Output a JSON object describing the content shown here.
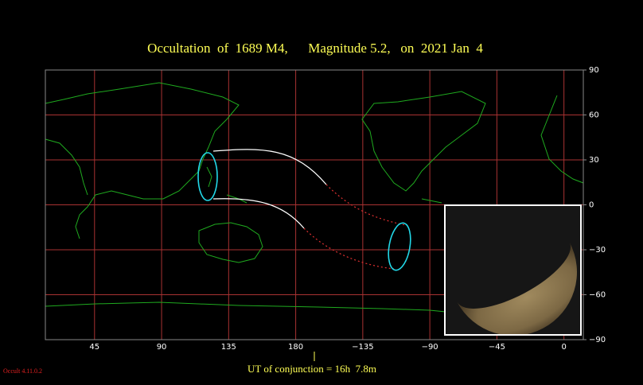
{
  "chart_data": {
    "type": "map",
    "title": "Occultation  of  1689 M4,      Magnitude 5.2,   on  2021 Jan  4",
    "xlim": [
      12,
      373
    ],
    "xticks": [
      45,
      90,
      135,
      180,
      {
        "value": -135,
        "label": "−135"
      },
      {
        "value": -90,
        "label": "−90"
      },
      {
        "value": -45,
        "label": "−45"
      },
      0
    ],
    "ylim": [
      -90,
      90
    ],
    "yticks": [
      90,
      60,
      30,
      0,
      {
        "value": -30,
        "label": "−30"
      },
      {
        "value": -60,
        "label": "−60"
      },
      {
        "value": -90,
        "label": "−90"
      }
    ],
    "grid": true,
    "grid_color": "#a83232",
    "footer": "UT of conjunction = 16h  7.8m",
    "version": "Occult 4.11.0.2"
  }
}
